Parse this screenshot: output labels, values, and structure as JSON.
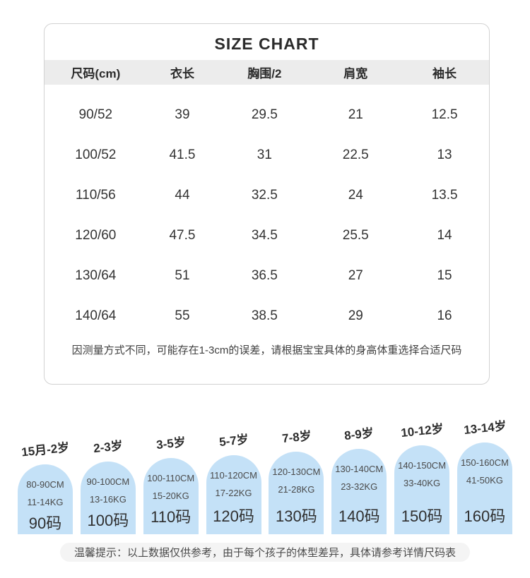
{
  "colors": {
    "header_row_bg": "#ececec",
    "card_border": "#d2d2d2",
    "pill_blue": "#c4e1f7",
    "footer_tip_bg": "#f4f4f4",
    "text_dark": "#2f2f2f",
    "text_gray": "#4a4a4a"
  },
  "footer_tip": "温馨提示：以上数据仅供参考，由于每个孩子的体型差异，具体请参考详情尺码表",
  "chart_data": [
    {
      "type": "table",
      "title": "SIZE CHART",
      "columns": [
        "尺码(cm)",
        "衣长",
        "胸围/2",
        "肩宽",
        "袖长"
      ],
      "rows": [
        [
          "90/52",
          "39",
          "29.5",
          "21",
          "12.5"
        ],
        [
          "100/52",
          "41.5",
          "31",
          "22.5",
          "13"
        ],
        [
          "110/56",
          "44",
          "32.5",
          "24",
          "13.5"
        ],
        [
          "120/60",
          "47.5",
          "34.5",
          "25.5",
          "14"
        ],
        [
          "130/64",
          "51",
          "36.5",
          "27",
          "15"
        ],
        [
          "140/64",
          "55",
          "38.5",
          "29",
          "16"
        ]
      ],
      "note": "因测量方式不同，可能存在1-3cm的误差，请根据宝宝具体的身高体重选择合适尺码"
    },
    {
      "type": "table",
      "columns": [
        "年龄",
        "身高",
        "体重",
        "尺码"
      ],
      "rows": [
        [
          "15月-2岁",
          "80-90CM",
          "11-14KG",
          "90码"
        ],
        [
          "2-3岁",
          "90-100CM",
          "13-16KG",
          "100码"
        ],
        [
          "3-5岁",
          "100-110CM",
          "15-20KG",
          "110码"
        ],
        [
          "5-7岁",
          "110-120CM",
          "17-22KG",
          "120码"
        ],
        [
          "7-8岁",
          "120-130CM",
          "21-28KG",
          "130码"
        ],
        [
          "8-9岁",
          "130-140CM",
          "23-32KG",
          "140码"
        ],
        [
          "10-12岁",
          "140-150CM",
          "33-40KG",
          "150码"
        ],
        [
          "13-14岁",
          "150-160CM",
          "41-50KG",
          "160码"
        ]
      ]
    }
  ]
}
